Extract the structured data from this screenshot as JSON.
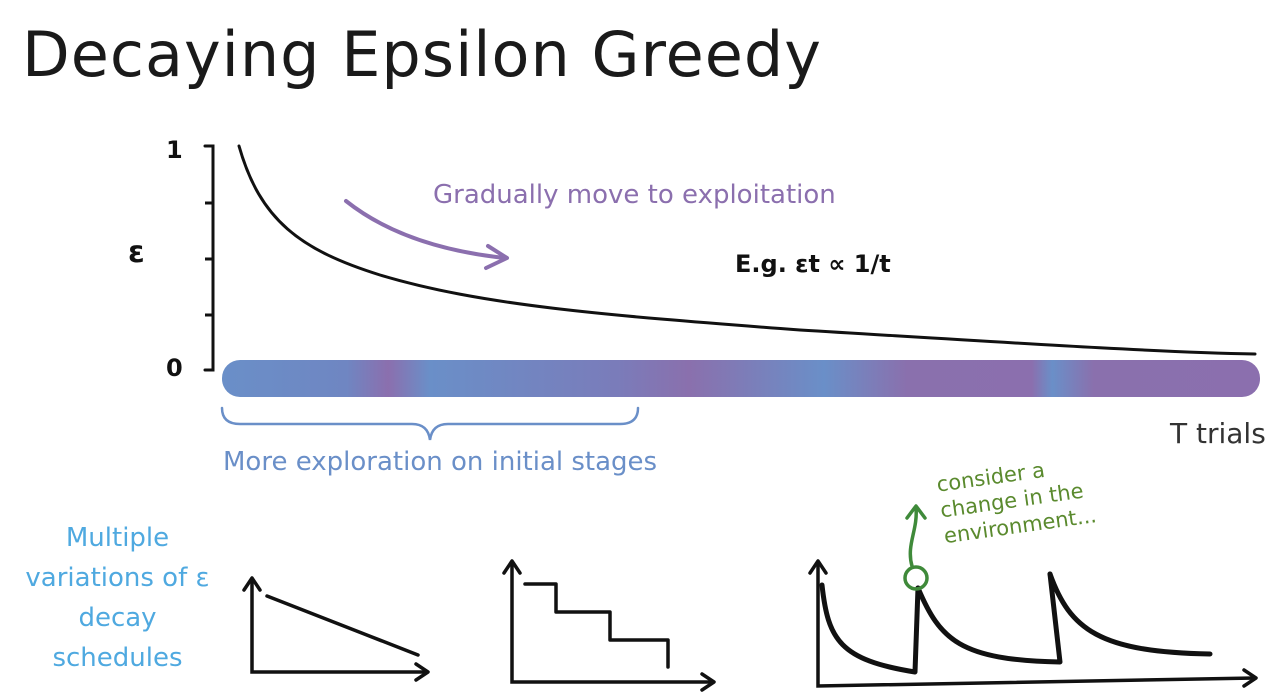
{
  "title": "Decaying Epsilon Greedy",
  "axis": {
    "y_label": "ε",
    "y_top_tick": "1",
    "y_bottom_tick": "0",
    "x_label": "T trials"
  },
  "annotations": {
    "exploitation": "Gradually move to exploitation",
    "formula": "E.g. εt ∝ 1/t",
    "exploration": "More exploration on initial stages",
    "variations": "Multiple variations of ε decay schedules",
    "environment": "consider a change in the environment..."
  },
  "colors": {
    "purple": "#8b6fae",
    "blue": "#6a8fc8",
    "sky": "#4fa9e0",
    "green": "#5a8a2e",
    "ink": "#111111"
  }
}
